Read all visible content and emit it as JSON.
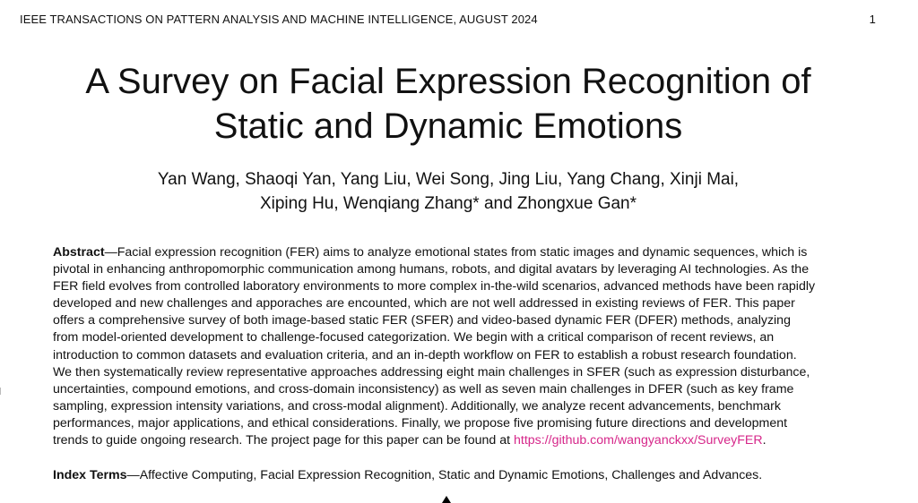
{
  "header": {
    "journal": "IEEE TRANSACTIONS ON PATTERN ANALYSIS AND MACHINE INTELLIGENCE, AUGUST 2024",
    "page_number": "1"
  },
  "title": {
    "line1": "A Survey on Facial Expression Recognition of",
    "line2": "Static and Dynamic Emotions"
  },
  "authors": {
    "line1": "Yan Wang, Shaoqi Yan, Yang Liu, Wei Song, Jing Liu, Yang Chang, Xinji Mai,",
    "line2": "Xiping Hu, Wenqiang Zhang* and Zhongxue Gan*"
  },
  "abstract": {
    "label": "Abstract",
    "lines": [
      "—Facial expression recognition (FER) aims to analyze emotional states from static images and dynamic sequences, which is",
      "pivotal in enhancing anthropomorphic communication among humans, robots, and digital avatars by leveraging AI technologies. As the",
      "FER field evolves from controlled laboratory environments to more complex in-the-wild scenarios, advanced methods have been rapidly",
      "developed and new challenges and apporaches are encounted, which are not well addressed in existing reviews of FER. This paper",
      "offers a comprehensive survey of both image-based static FER (SFER) and video-based dynamic FER (DFER) methods, analyzing",
      "from model-oriented development to challenge-focused categorization. We begin with a critical comparison of recent reviews, an",
      "introduction to common datasets and evaluation criteria, and an in-depth workflow on FER to establish a robust research foundation.",
      "We then systematically review representative approaches addressing eight main challenges in SFER (such as expression disturbance,",
      "uncertainties, compound emotions, and cross-domain inconsistency) as well as seven main challenges in DFER (such as key frame",
      "sampling, expression intensity variations, and cross-modal alignment). Additionally, we analyze recent advancements, benchmark",
      "performances, major applications, and ethical considerations. Finally, we propose five promising future directions and development",
      "trends to guide ongoing research. The project page for this paper can be found at "
    ],
    "link": "https://github.com/wangyanckxx/SurveyFER",
    "end": "."
  },
  "index_terms": {
    "label": "Index Terms",
    "text": "—Affective Computing, Facial Expression Recognition, Static and Dynamic Emotions, Challenges and Advances."
  },
  "colors": {
    "link": "#d6278a",
    "text": "#111111"
  }
}
